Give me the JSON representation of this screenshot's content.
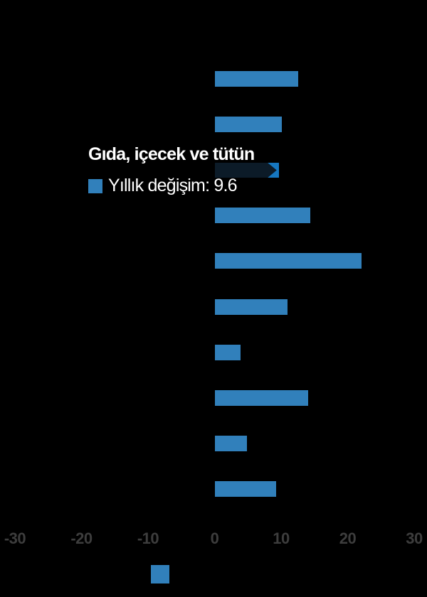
{
  "tooltip": {
    "title": "Gıda, içecek ve tütün",
    "value_line": "Yıllık değişim: 9.6",
    "marker_color": "#3180bb"
  },
  "chart_data": {
    "type": "bar",
    "orientation": "horizontal",
    "categories": [
      "",
      "",
      "",
      "",
      "",
      "",
      "",
      "",
      "",
      ""
    ],
    "series": [
      {
        "name": "Yıllık değişim",
        "values": [
          12.5,
          10.0,
          9.6,
          14.3,
          22.0,
          10.9,
          3.8,
          14.0,
          4.8,
          9.2
        ]
      }
    ],
    "highlighted_index": 2,
    "highlighted_category": "Gıda, içecek ve tütün",
    "highlighted_value": 9.6,
    "xlim": [
      -30,
      30
    ],
    "x_tick_values": [
      -30,
      -20,
      -10,
      0,
      10,
      20,
      30
    ],
    "x_tick_labels": [
      "-30",
      "-20",
      "-10",
      "0",
      "10",
      "20",
      "30"
    ],
    "grid": false,
    "legend_position": "bottom",
    "bar_color": "#3180bb",
    "highlight_bar_dark": "#0c1b28",
    "highlight_tip_blue": "#1677c0",
    "axis_label_color": "#3d3d3d",
    "background_color": "#000000"
  }
}
